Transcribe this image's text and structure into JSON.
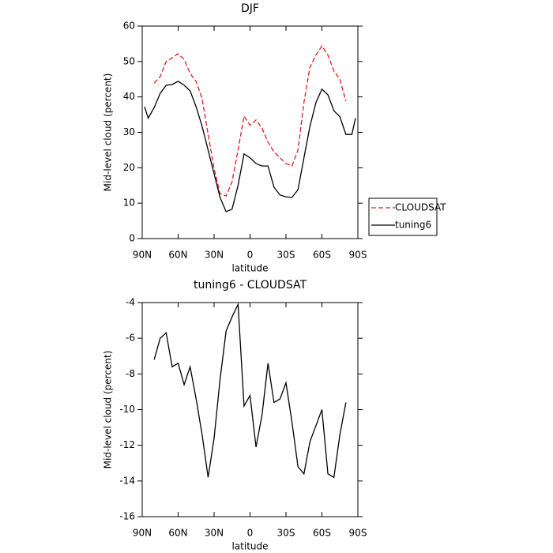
{
  "chart_data": [
    {
      "type": "line",
      "title": "DJF",
      "xlabel": "latitude",
      "ylabel": "Mid-level cloud (percent)",
      "x": [
        88,
        85,
        80,
        75,
        70,
        65,
        60,
        55,
        50,
        45,
        40,
        35,
        30,
        25,
        20,
        15,
        10,
        5,
        0,
        -5,
        -10,
        -15,
        -20,
        -25,
        -30,
        -35,
        -40,
        -45,
        -50,
        -55,
        -60,
        -65,
        -70,
        -75,
        -80,
        -85,
        -88
      ],
      "series": [
        {
          "name": "CLOUDSAT",
          "color": "#e41a1c",
          "dash": true,
          "values": [
            null,
            null,
            43.9,
            45.7,
            50,
            51,
            52.2,
            50.6,
            46.6,
            44.4,
            39.5,
            29.4,
            19.8,
            12.7,
            12,
            16,
            25,
            34.6,
            32,
            33.5,
            31.2,
            27.2,
            24.5,
            22.8,
            21.2,
            20.5,
            25,
            38.4,
            48.4,
            51.8,
            54.4,
            51.8,
            47.3,
            45,
            38.8,
            null,
            null
          ]
        },
        {
          "name": "tuning6",
          "color": "#000000",
          "dash": false,
          "values": [
            37.2,
            34,
            37,
            41,
            43.3,
            43.5,
            44.4,
            43.3,
            41.7,
            37.2,
            31.7,
            25,
            18.3,
            11.6,
            7.6,
            8.3,
            15,
            23.9,
            22.8,
            21.2,
            20.5,
            20.5,
            14.5,
            12.3,
            11.8,
            11.6,
            13.8,
            22.8,
            31.7,
            38.4,
            42.2,
            40.6,
            36.1,
            34.4,
            29.4,
            29.4,
            34
          ]
        }
      ],
      "xlim": [
        90,
        -90
      ],
      "ylim": [
        0,
        60
      ],
      "xticks": [
        {
          "value": 90,
          "label": "90N"
        },
        {
          "value": 60,
          "label": "60N"
        },
        {
          "value": 30,
          "label": "30N"
        },
        0,
        {
          "value": -30,
          "label": "30S"
        },
        {
          "value": -60,
          "label": "60S"
        },
        {
          "value": -90,
          "label": "90S"
        }
      ],
      "yticks": [
        0,
        10,
        20,
        30,
        40,
        50,
        60
      ],
      "legend": "right"
    },
    {
      "type": "line",
      "title": "tuning6 - CLOUDSAT",
      "xlabel": "latitude",
      "ylabel": "Mid-level cloud (percent)",
      "x": [
        80,
        75,
        70,
        65,
        60,
        55,
        50,
        45,
        40,
        35,
        30,
        25,
        20,
        15,
        10,
        5,
        0,
        -5,
        -10,
        -15,
        -20,
        -25,
        -30,
        -35,
        -40,
        -45,
        -50,
        -55,
        -60,
        -65,
        -70,
        -75,
        -80
      ],
      "series": [
        {
          "color": "#000000",
          "dash": false,
          "values": [
            -7.2,
            -6.0,
            -5.7,
            -7.6,
            -7.4,
            -8.6,
            -7.6,
            -9.4,
            -11.4,
            -13.8,
            -11.6,
            -8.3,
            -5.6,
            -4.8,
            -4.1,
            -9.8,
            -9.2,
            -12.1,
            -10.3,
            -7.4,
            -9.6,
            -9.4,
            -8.5,
            -10.7,
            -13.2,
            -13.6,
            -11.8,
            -10.9,
            -10.0,
            -13.6,
            -13.8,
            -11.4,
            -9.6
          ]
        }
      ],
      "xlim": [
        90,
        -90
      ],
      "ylim": [
        -16,
        -4
      ],
      "xticks": [
        {
          "value": 90,
          "label": "90N"
        },
        {
          "value": 60,
          "label": "60N"
        },
        {
          "value": 30,
          "label": "30N"
        },
        0,
        {
          "value": -30,
          "label": "30S"
        },
        {
          "value": -60,
          "label": "60S"
        },
        {
          "value": -90,
          "label": "90S"
        }
      ],
      "yticks": [
        -16,
        -14,
        -12,
        -10,
        -8,
        -6,
        -4
      ]
    }
  ]
}
